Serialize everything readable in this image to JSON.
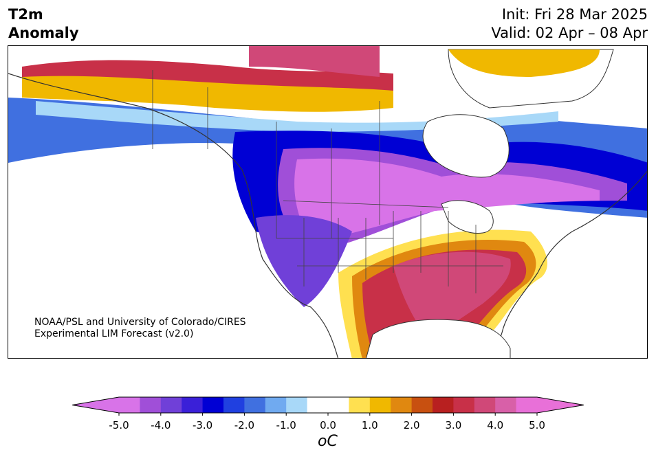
{
  "title": {
    "line1": "T2m",
    "line2": "Anomaly"
  },
  "init": {
    "label": "Init: Fri 28 Mar 2025"
  },
  "valid": {
    "label": "Valid: 02 Apr – 08 Apr"
  },
  "credit": {
    "line1": "NOAA/PSL and University of Colorado/CIRES",
    "line2": "Experimental LIM Forecast (v2.0)"
  },
  "colorbar": {
    "unit": "oC",
    "ticks": [
      "-5.0",
      "-4.0",
      "-3.0",
      "-2.0",
      "-1.0",
      "0.0",
      "1.0",
      "2.0",
      "3.0",
      "4.0",
      "5.0"
    ],
    "tick_values": [
      -5,
      -4,
      -3,
      -2,
      -1,
      0,
      1,
      2,
      3,
      4,
      5
    ],
    "colors": [
      "#d873e8",
      "#a04fd8",
      "#7040d8",
      "#3a20d8",
      "#0000d4",
      "#2040e0",
      "#4070e0",
      "#70aaf0",
      "#a8d8f8",
      "#ffffff",
      "#ffffff",
      "#ffe050",
      "#f0b800",
      "#e08810",
      "#c85010",
      "#b82020",
      "#c83048",
      "#d04878",
      "#d860a8",
      "#e870d8"
    ],
    "min_color": "#d873e8",
    "max_color": "#e870d8"
  }
}
